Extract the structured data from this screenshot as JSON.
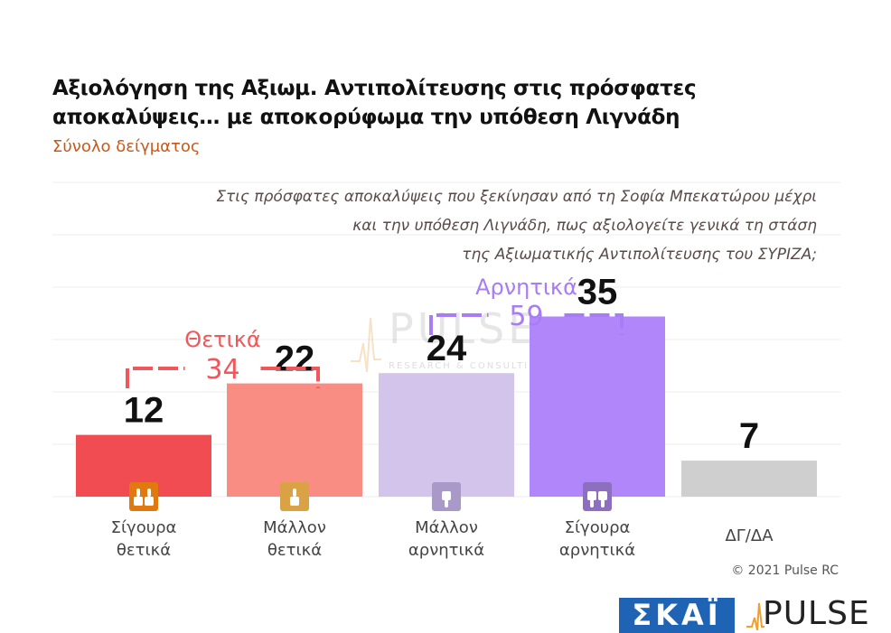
{
  "header": {
    "title_line1": "Αξιολόγηση της Αξιωμ. Αντιπολίτευσης στις πρόσφατες",
    "title_line2": "αποκαλύψεις… με αποκορύφωμα την υπόθεση Λιγνάδη",
    "subtitle": "Σύνολο δείγματος"
  },
  "question": {
    "line1": "Στις πρόσφατες αποκαλύψεις που ξεκίνησαν από τη Σοφία Μπεκατώρου μέχρι",
    "line2": "και την υπόθεση Λιγνάδη, πως αξιολογείτε γενικά τη στάση",
    "line3": "της Αξιωματικής Αντιπολίτευσης του ΣΥΡΙΖΑ;"
  },
  "watermark": {
    "brand": "PULSE",
    "tagline": "RESEARCH & CONSULTING"
  },
  "groups": [
    {
      "label": "Θετικά",
      "total": "34",
      "color": "#f0565a"
    },
    {
      "label": "Αρνητικά",
      "total": "59",
      "color": "#a87cf5"
    }
  ],
  "chart_data": {
    "type": "bar",
    "categories": [
      [
        "Σίγουρα",
        "θετικά"
      ],
      [
        "Μάλλον",
        "θετικά"
      ],
      [
        "Μάλλον",
        "αρνητικά"
      ],
      [
        "Σίγουρα",
        "αρνητικά"
      ],
      [
        "ΔΓ/ΔΑ"
      ]
    ],
    "values": [
      12,
      22,
      24,
      35,
      7
    ],
    "colors": [
      "#f24c53",
      "#f98d84",
      "#d2c4ea",
      "#b286fb",
      "#cfcfcf"
    ],
    "icons": [
      "double-thumbs-up-icon",
      "thumbs-up-icon",
      "thumbs-down-icon",
      "double-thumbs-down-icon",
      ""
    ],
    "icon_colors": [
      "#e07a10",
      "#d9a244",
      "#a899c8",
      "#8d6fc0",
      ""
    ],
    "ylim": [
      0,
      50
    ],
    "grid": true,
    "title": "Αξιολόγηση της Αξιωμ. Αντιπολίτευσης στις πρόσφατες αποκαλύψεις… με αποκορύφωμα την υπόθεση Λιγνάδη",
    "subtitle": "Σύνολο δείγματος"
  },
  "footer": {
    "copyright": "© 2021 Pulse RC",
    "logo_skai": "ΣΚΑΪ",
    "logo_pulse": "PULSE"
  }
}
